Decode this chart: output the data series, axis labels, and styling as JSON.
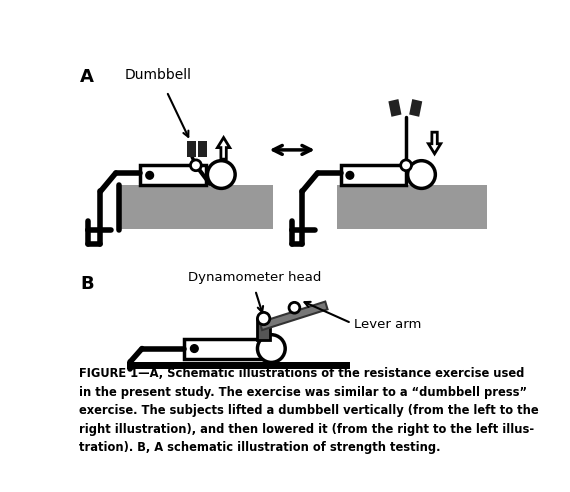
{
  "caption": "FIGURE 1—A, Schematic illustrations of the resistance exercise used\nin the present study. The exercise was similar to a “dumbbell press”\nexercise. The subjects lifted a dumbbell vertically (from the left to the\nright illustration), and then lowered it (from the right to the left illus-\ntration). B, A schematic illustration of strength testing.",
  "label_A": "A",
  "label_B": "B",
  "label_dumbbell": "Dumbbell",
  "label_dynamo": "Dynamometer head",
  "label_lever": "Lever arm",
  "bg_color": "#ffffff",
  "gray_color": "#999999",
  "dark_color": "#222222",
  "black": "#000000"
}
